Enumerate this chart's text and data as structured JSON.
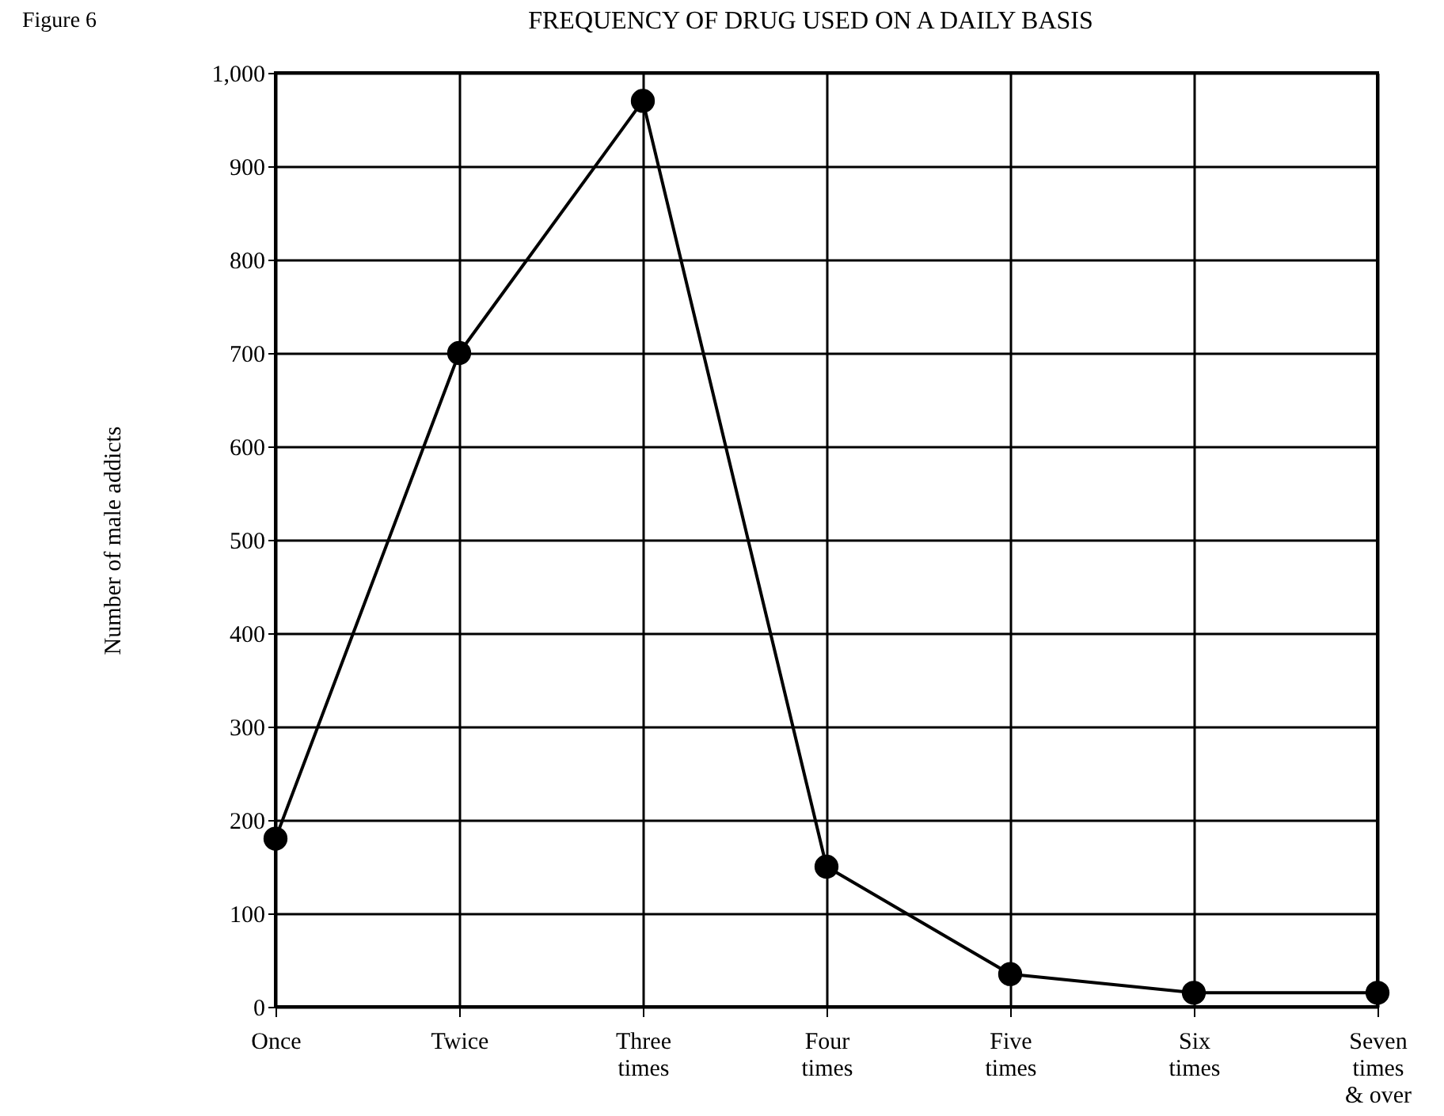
{
  "chart_data": {
    "type": "line",
    "title": "FREQUENCY OF DRUG USED ON A DAILY BASIS",
    "ylabel": "Number of male addicts",
    "annotations": [
      "Figure 6"
    ],
    "categories": [
      "Once",
      "Twice",
      "Three times",
      "Four times",
      "Five times",
      "Six times",
      "Seven times & over"
    ],
    "series": [
      {
        "color": "#000000",
        "values": [
          180,
          700,
          970,
          150,
          35,
          15,
          15
        ]
      }
    ],
    "ylim": [
      0,
      1000
    ],
    "yticks": [
      0,
      100,
      200,
      300,
      400,
      500,
      600,
      700,
      800,
      900,
      {
        "value": 1000,
        "label": "1,000"
      }
    ],
    "grid": true,
    "marker": "circle",
    "line_style": "solid",
    "legend": false
  }
}
